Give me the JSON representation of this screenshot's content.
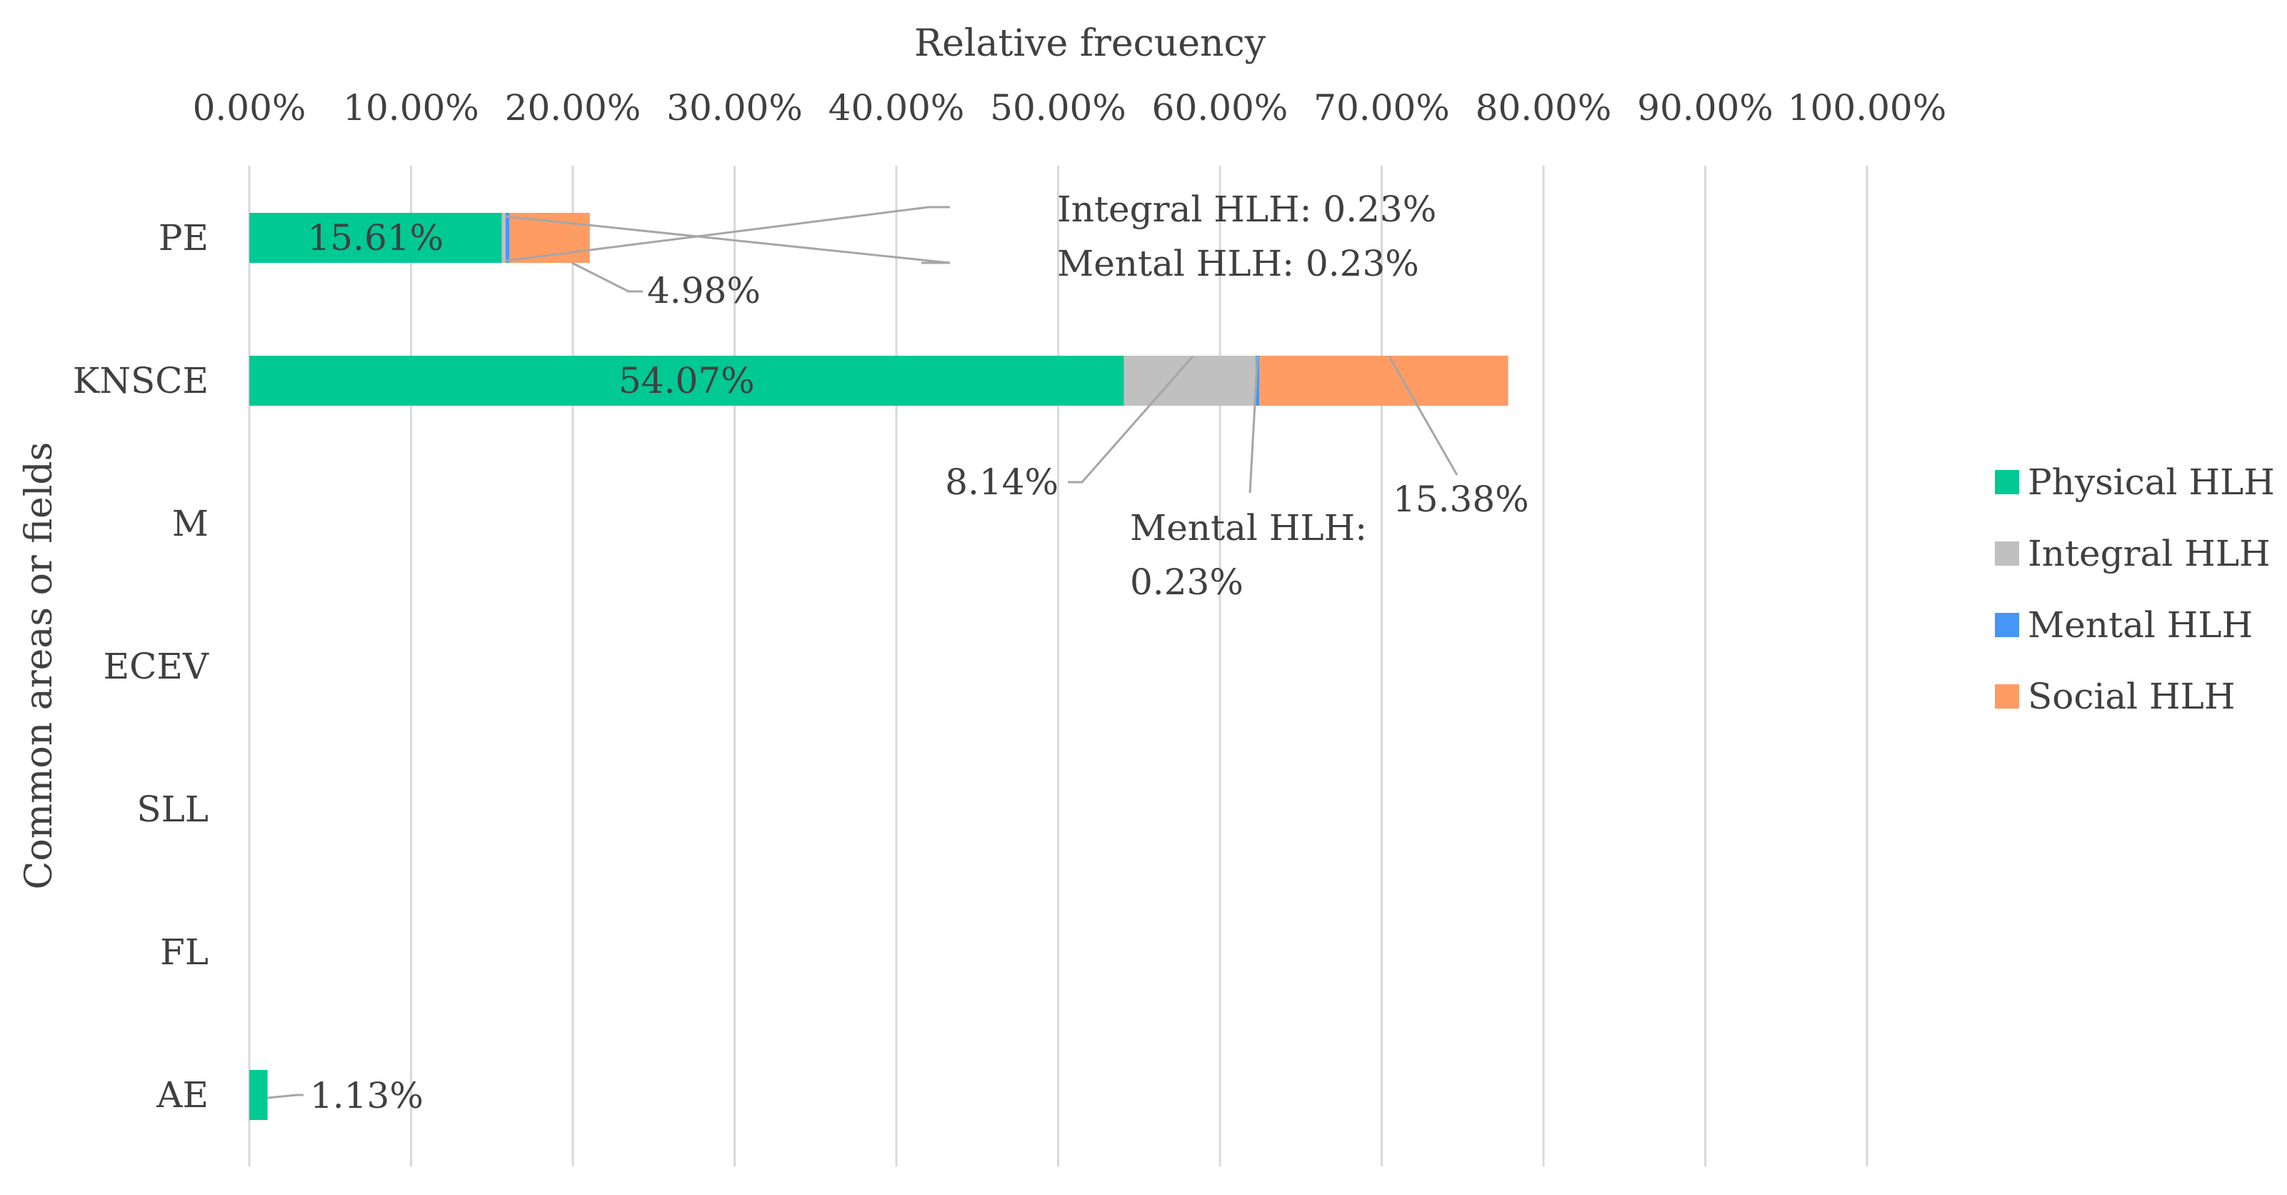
{
  "chart_data": {
    "type": "bar",
    "orientation": "horizontal",
    "stacked": true,
    "title": "",
    "xlabel": "Relative frecuency",
    "ylabel": "Common areas or fields",
    "xlim": [
      0,
      100
    ],
    "x_ticks": [
      "0.00%",
      "10.00%",
      "20.00%",
      "30.00%",
      "40.00%",
      "50.00%",
      "60.00%",
      "70.00%",
      "80.00%",
      "90.00%",
      "100.00%"
    ],
    "x_axis_position": "top",
    "grid": "vertical",
    "legend_position": "right",
    "categories": [
      "PE",
      "KNSCE",
      "M",
      "ECEV",
      "SLL",
      "FL",
      "AE"
    ],
    "series": [
      {
        "name": "Physical HLH",
        "color": "#00c994",
        "values": [
          15.61,
          54.07,
          0,
          0,
          0,
          0,
          1.13
        ]
      },
      {
        "name": "Integral HLH",
        "color": "#c0c0c0",
        "values": [
          0.23,
          8.14,
          0,
          0,
          0,
          0,
          0
        ]
      },
      {
        "name": "Mental HLH",
        "color": "#4596f5",
        "values": [
          0.23,
          0.23,
          0,
          0,
          0,
          0,
          0
        ]
      },
      {
        "name": "Social HLH",
        "color": "#ff9c64",
        "values": [
          4.98,
          15.38,
          0,
          0,
          0,
          0,
          0
        ]
      }
    ],
    "data_labels": [
      {
        "category": "PE",
        "series": "Physical HLH",
        "text": "15.61%"
      },
      {
        "category": "PE",
        "series": "Integral HLH",
        "text": "Integral HLH: 0.23%"
      },
      {
        "category": "PE",
        "series": "Mental HLH",
        "text": "Mental HLH: 0.23%"
      },
      {
        "category": "PE",
        "series": "Social HLH",
        "text": "4.98%"
      },
      {
        "category": "KNSCE",
        "series": "Physical HLH",
        "text": "54.07%"
      },
      {
        "category": "KNSCE",
        "series": "Integral HLH",
        "text": "8.14%"
      },
      {
        "category": "KNSCE",
        "series": "Mental HLH",
        "text": "Mental HLH: 0.23%"
      },
      {
        "category": "KNSCE",
        "series": "Social HLH",
        "text": "15.38%"
      },
      {
        "category": "AE",
        "series": "Physical HLH",
        "text": "1.13%"
      }
    ]
  }
}
